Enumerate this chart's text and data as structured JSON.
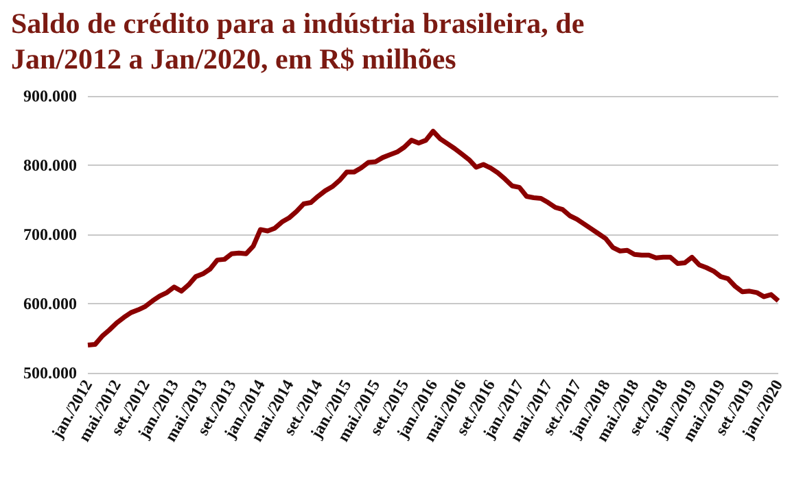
{
  "chart_data": {
    "type": "line",
    "title": "Saldo de crédito para a indústria brasileira, de Jan/2012 a Jan/2020, em R$ milhões",
    "categories": [
      "jan./2012",
      null,
      null,
      null,
      "mai./2012",
      null,
      null,
      null,
      "set./2012",
      null,
      null,
      null,
      "jan./2013",
      null,
      null,
      null,
      "mai./2013",
      null,
      null,
      null,
      "set./2013",
      null,
      null,
      null,
      "jan./2014",
      null,
      null,
      null,
      "mai./2014",
      null,
      null,
      null,
      "set./2014",
      null,
      null,
      null,
      "jan./2015",
      null,
      null,
      null,
      "mai./2015",
      null,
      null,
      null,
      "set./2015",
      null,
      null,
      null,
      "jan./2016",
      null,
      null,
      null,
      "mai./2016",
      null,
      null,
      null,
      "set./2016",
      null,
      null,
      null,
      "jan./2017",
      null,
      null,
      null,
      "mai./2017",
      null,
      null,
      null,
      "set./2017",
      null,
      null,
      null,
      "jan./2018",
      null,
      null,
      null,
      "mai./2018",
      null,
      null,
      null,
      "set./2018",
      null,
      null,
      null,
      "jan./2019",
      null,
      null,
      null,
      "mai./2019",
      null,
      null,
      null,
      "set./2019",
      null,
      null,
      null,
      "jan./2020"
    ],
    "series": [
      {
        "color": "#8b0000",
        "values": [
          540000,
          541000,
          553000,
          562000,
          572000,
          580000,
          587000,
          591000,
          596000,
          604000,
          611000,
          616000,
          624000,
          618000,
          627000,
          639000,
          643000,
          650000,
          663000,
          664000,
          672000,
          673000,
          672000,
          683000,
          707000,
          705000,
          709000,
          718000,
          724000,
          733000,
          744000,
          746000,
          755000,
          763000,
          769000,
          778000,
          790000,
          790000,
          796000,
          804000,
          805000,
          811000,
          815000,
          819000,
          826000,
          836000,
          832000,
          836000,
          849000,
          838000,
          831000,
          824000,
          816000,
          808000,
          797000,
          801000,
          796000,
          789000,
          780000,
          770000,
          768000,
          755000,
          753000,
          752000,
          746000,
          739000,
          736000,
          727000,
          722000,
          715000,
          708000,
          701000,
          694000,
          681000,
          676000,
          677000,
          671000,
          670000,
          670000,
          666000,
          667000,
          667000,
          658000,
          659000,
          667000,
          656000,
          652000,
          647000,
          639000,
          636000,
          625000,
          617000,
          618000,
          616000,
          610000,
          613000,
          604000
        ]
      }
    ],
    "ylim": [
      500000,
      900000
    ],
    "yticks": [
      {
        "value": 500000,
        "label": "500.000"
      },
      {
        "value": 600000,
        "label": "600.000"
      },
      {
        "value": 700000,
        "label": "700.000"
      },
      {
        "value": 800000,
        "label": "800.000"
      },
      {
        "value": 900000,
        "label": "900.000"
      }
    ],
    "grid": "y",
    "marker": "none",
    "line_style": "solid"
  }
}
